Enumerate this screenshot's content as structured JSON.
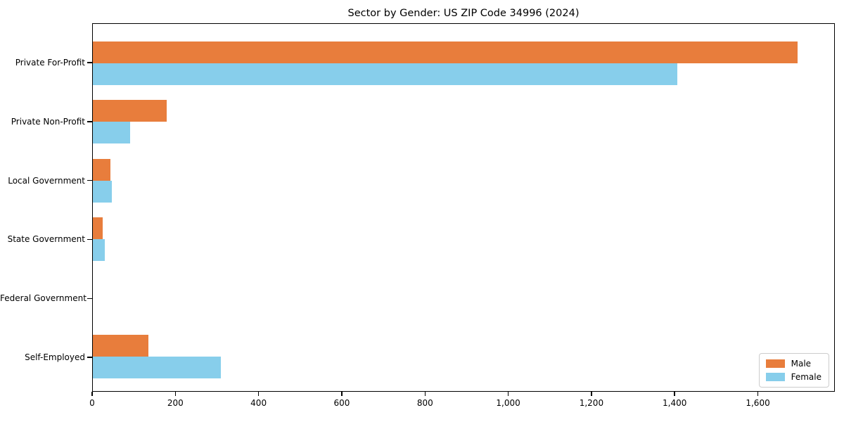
{
  "chart_data": {
    "type": "bar",
    "orientation": "horizontal",
    "title": "Sector by Gender: US ZIP Code 34996 (2024)",
    "categories": [
      "Private For-Profit",
      "Private Non-Profit",
      "Local Government",
      "State Government",
      "Federal Government",
      "Self-Employed"
    ],
    "series": [
      {
        "name": "Male",
        "color": "#e87d3c",
        "values": [
          1697,
          178,
          43,
          24,
          0,
          133
        ]
      },
      {
        "name": "Female",
        "color": "#87ceeb",
        "values": [
          1407,
          89,
          46,
          28,
          0,
          309
        ]
      }
    ],
    "xlabel": "",
    "ylabel": "",
    "xlim": [
      0,
      1785
    ],
    "xticks": [
      0,
      200,
      400,
      600,
      800,
      1000,
      1200,
      1400,
      1600
    ],
    "xtick_labels": [
      "0",
      "200",
      "400",
      "600",
      "800",
      "1,000",
      "1,200",
      "1,400",
      "1,600"
    ],
    "grid": false,
    "legend": {
      "position": "lower right"
    }
  }
}
